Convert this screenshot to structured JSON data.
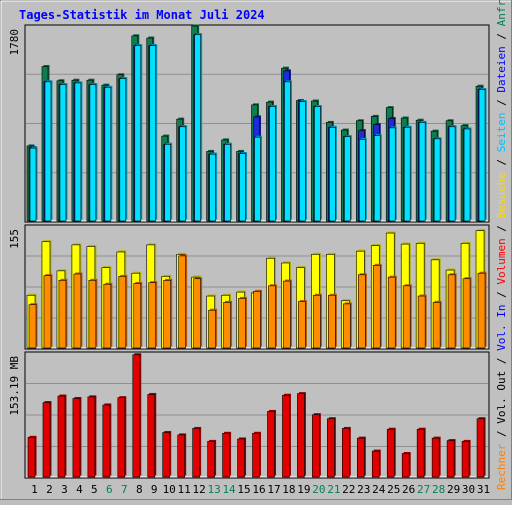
{
  "title": "Tages-Statistik im Monat Juli 2024",
  "right_legend": {
    "top": [
      {
        "text": "Anfragen",
        "color": "#007e4f"
      },
      {
        "text": " / ",
        "color": "#000000"
      },
      {
        "text": "Dateien",
        "color": "#0000ff"
      },
      {
        "text": " / ",
        "color": "#000000"
      },
      {
        "text": "Seiten",
        "color": "#00c0ff"
      },
      {
        "text": " / ",
        "color": "#000000"
      },
      {
        "text": "Besuche",
        "color": "#ffd800"
      }
    ],
    "bottom": [
      {
        "text": "Rechner",
        "color": "#ff8000"
      },
      {
        "text": " / ",
        "color": "#000000"
      },
      {
        "text": "Vol. Out",
        "color": "#000000"
      },
      {
        "text": " / ",
        "color": "#000000"
      },
      {
        "text": "Vol. In",
        "color": "#0000ff"
      },
      {
        "text": " / ",
        "color": "#000000"
      },
      {
        "text": "Volumen",
        "color": "#ff0000"
      }
    ]
  },
  "colors": {
    "hits": "#0f7e4f",
    "files": "#1e2bd6",
    "pages": "#00e0ff",
    "visits": "#ffff00",
    "sites": "#ff8c00",
    "volume": "#e00000",
    "weekend_day": "#00805a",
    "weekday": "#000000"
  },
  "chart_data": [
    {
      "type": "bar",
      "title": "Tages-Statistik im Monat Juli 2024",
      "ylabel": "1780",
      "ylim": [
        0,
        1780
      ],
      "categories": [
        "1",
        "2",
        "3",
        "4",
        "5",
        "6",
        "7",
        "8",
        "9",
        "10",
        "11",
        "12",
        "13",
        "14",
        "15",
        "16",
        "17",
        "18",
        "19",
        "20",
        "21",
        "22",
        "23",
        "24",
        "25",
        "26",
        "27",
        "28",
        "29",
        "30",
        "31"
      ],
      "weekend_days": [
        "6",
        "7",
        "13",
        "14",
        "20",
        "21",
        "27",
        "28"
      ],
      "series": [
        {
          "name": "Anfragen",
          "values": [
            685,
            1410,
            1280,
            1285,
            1285,
            1240,
            1335,
            1690,
            1670,
            775,
            930,
            1780,
            635,
            740,
            635,
            1060,
            1085,
            1395,
            1100,
            1095,
            900,
            830,
            915,
            955,
            1035,
            940,
            920,
            820,
            915,
            870,
            1230
          ]
        },
        {
          "name": "Dateien",
          "values": [
            670,
            1270,
            1245,
            1260,
            1245,
            1220,
            1300,
            1600,
            1600,
            700,
            860,
            1700,
            610,
            700,
            615,
            950,
            1045,
            1370,
            1090,
            1045,
            855,
            770,
            825,
            880,
            935,
            855,
            900,
            750,
            860,
            840,
            1200
          ]
        },
        {
          "name": "Seiten",
          "values": [
            665,
            1270,
            1245,
            1260,
            1245,
            1220,
            1300,
            1600,
            1600,
            700,
            860,
            1700,
            610,
            700,
            615,
            765,
            1045,
            1270,
            1090,
            1045,
            855,
            770,
            745,
            780,
            850,
            855,
            900,
            750,
            860,
            840,
            1200
          ]
        }
      ]
    },
    {
      "type": "bar",
      "ylabel": "155",
      "ylim": [
        0,
        155
      ],
      "categories": [
        "1",
        "2",
        "3",
        "4",
        "5",
        "6",
        "7",
        "8",
        "9",
        "10",
        "11",
        "12",
        "13",
        "14",
        "15",
        "16",
        "17",
        "18",
        "19",
        "20",
        "21",
        "22",
        "23",
        "24",
        "25",
        "26",
        "27",
        "28",
        "29",
        "30",
        "31"
      ],
      "series": [
        {
          "name": "Besuche",
          "values": [
            67,
            135,
            98,
            131,
            129,
            102,
            122,
            95,
            131,
            91,
            119,
            90,
            66,
            67,
            71,
            70,
            114,
            108,
            102,
            119,
            119,
            60,
            123,
            130,
            146,
            132,
            133,
            112,
            99,
            133,
            149
          ]
        },
        {
          "name": "Rechner",
          "values": [
            55,
            92,
            86,
            94,
            86,
            81,
            91,
            82,
            83,
            86,
            117,
            88,
            48,
            58,
            63,
            72,
            79,
            85,
            59,
            67,
            67,
            56,
            93,
            105,
            90,
            79,
            66,
            58,
            93,
            88,
            95
          ]
        }
      ]
    },
    {
      "type": "bar",
      "ylabel": "153.19 MB",
      "ylim": [
        0,
        153.19
      ],
      "categories": [
        "1",
        "2",
        "3",
        "4",
        "5",
        "6",
        "7",
        "8",
        "9",
        "10",
        "11",
        "12",
        "13",
        "14",
        "15",
        "16",
        "17",
        "18",
        "19",
        "20",
        "21",
        "22",
        "23",
        "24",
        "25",
        "26",
        "27",
        "28",
        "29",
        "30",
        "31"
      ],
      "series": [
        {
          "name": "Volumen",
          "values": [
            49,
            92,
            100,
            97,
            99,
            89,
            98,
            151,
            102,
            55,
            52,
            60,
            44,
            54,
            47,
            54,
            81,
            101,
            103,
            77,
            72,
            60,
            48,
            32,
            59,
            29,
            59,
            48,
            45,
            44,
            72
          ]
        }
      ]
    }
  ]
}
